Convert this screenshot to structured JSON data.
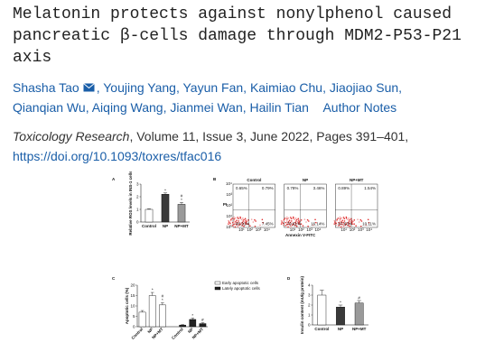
{
  "header": {
    "title": "Melatonin protects against nonylphenol caused pancreatic β-cells damage through MDM2-P53-P21 axis",
    "authors": [
      "Shasha Tao",
      "Youjing Yang",
      "Yayun Fan",
      "Kaimiao Chu",
      "Jiaojiao Sun",
      "Qianqian Wu",
      "Aiqing Wang",
      "Jianmei Wan",
      "Hailin Tian"
    ],
    "author_notes": "Author Notes",
    "journal": "Toxicology Research",
    "citation": ", Volume 11, Issue 3, June 2022, Pages 391–401,",
    "doi": "https://doi.org/10.1093/toxres/tfac016"
  },
  "figure": {
    "panels": [
      {
        "letter": "A",
        "type": "bar",
        "ylabel": "Relative ROS levels in INS-1 cells",
        "categories": [
          "Control",
          "NP",
          "NP+MT"
        ],
        "values": [
          1,
          2.2,
          1.4
        ],
        "errors": [
          0.05,
          0.1,
          0.15
        ],
        "colors": [
          "#ffffff",
          "#3a3a3a",
          "#9a9a9a"
        ],
        "sig": [
          [],
          [
            "*"
          ],
          [
            "#",
            "*"
          ]
        ],
        "ylim": [
          0,
          3
        ],
        "yticks": [
          0,
          1,
          2,
          3
        ]
      },
      {
        "letter": "B",
        "type": "flow",
        "xlabel": "Annexin V-FITC",
        "ylabel": "PI",
        "ticks": [
          "10⁰",
          "10¹",
          "10²",
          "10³",
          "10⁴"
        ],
        "plots": [
          {
            "title": "Control",
            "quadrants": [
              0.65,
              0.79,
              90.91,
              7.45
            ],
            "value_labels": [
              "0.65%",
              "0.79%",
              "90.91%",
              "7.45%"
            ]
          },
          {
            "title": "NP",
            "quadrants": [
              0.78,
              3.46,
              79.61,
              16.14
            ],
            "value_labels": [
              "0.78%",
              "3.46%",
              "79.61%",
              "16.14%"
            ]
          },
          {
            "title": "NP+MT",
            "quadrants": [
              0.89,
              1.54,
              87.63,
              10.11
            ],
            "value_labels": [
              "0.89%",
              "1.54%",
              "87.63%",
              "10.11%"
            ]
          }
        ]
      },
      {
        "letter": "C",
        "type": "grouped",
        "ylabel": "Apoptotic cells (%)",
        "categories": [
          "Control",
          "NP",
          "NP+MT"
        ],
        "series": [
          {
            "name": "Early apoptotic cells",
            "color": "#ffffff",
            "values": [
              7,
              15,
              10.5
            ],
            "errors": [
              0.8,
              1.5,
              1
            ],
            "sig": [
              [],
              [
                "*"
              ],
              [
                "#",
                "*"
              ]
            ]
          },
          {
            "name": "Lately apoptotic cells",
            "color": "#222222",
            "values": [
              0.8,
              3.5,
              1.5
            ],
            "errors": [
              0.2,
              0.6,
              0.4
            ],
            "sig": [
              [],
              [
                "*"
              ],
              [
                "#"
              ]
            ]
          }
        ],
        "ylim": [
          0,
          20
        ],
        "yticks": [
          0,
          5,
          10,
          15,
          20
        ]
      },
      {
        "letter": "D",
        "type": "bar",
        "ylabel": "Insulin content (mU/g protein)",
        "categories": [
          "Control",
          "NP",
          "NP+MT"
        ],
        "values": [
          3,
          1.8,
          2.2
        ],
        "errors": [
          0.5,
          0.2,
          0.25
        ],
        "colors": [
          "#ffffff",
          "#3a3a3a",
          "#9a9a9a"
        ],
        "sig": [
          [],
          [
            "*"
          ],
          [
            "#"
          ]
        ],
        "ylim": [
          0,
          4
        ],
        "yticks": [
          0,
          1,
          2,
          3,
          4
        ]
      }
    ]
  }
}
